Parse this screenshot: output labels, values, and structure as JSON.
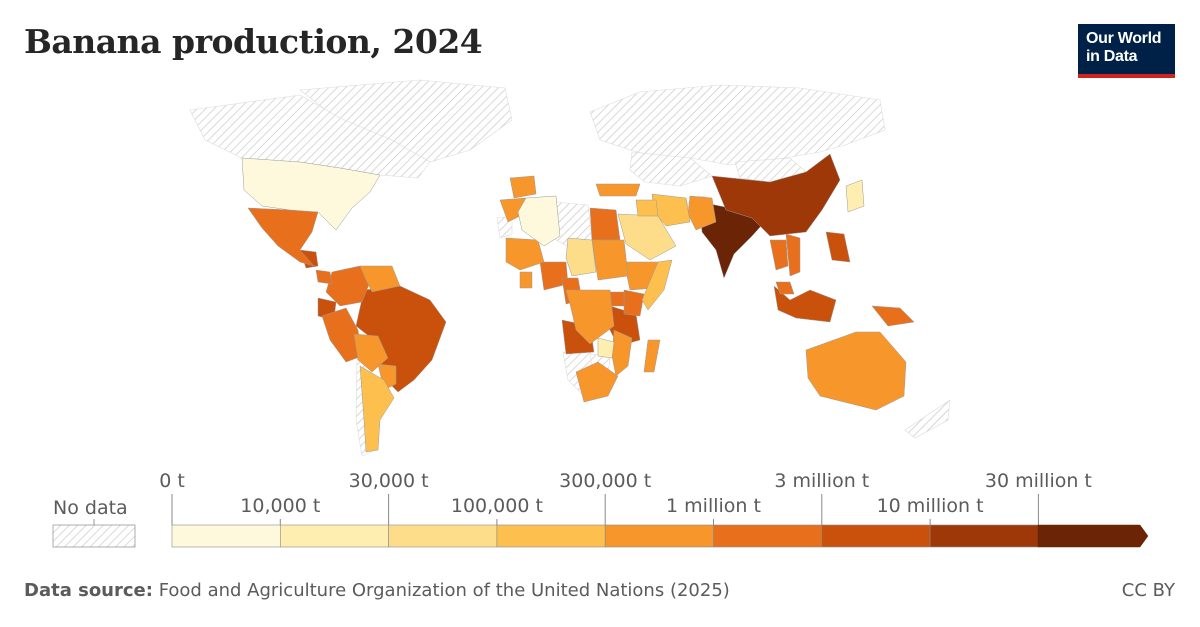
{
  "title": "Banana production, 2024",
  "logo": {
    "line1": "Our World",
    "line2": "in Data",
    "bg": "#002147",
    "accent": "#ce261e"
  },
  "legend": {
    "no_data_label": "No data",
    "upper_ticks": [
      "0 t",
      "30,000 t",
      "300,000 t",
      "3 million t",
      "30 million t"
    ],
    "lower_ticks": [
      "10,000 t",
      "100,000 t",
      "1 million t",
      "10 million t"
    ],
    "bins": [
      {
        "range": "0 t – 10,000 t",
        "color": "#fef9dc"
      },
      {
        "range": "10,000 t – 30,000 t",
        "color": "#feefb1"
      },
      {
        "range": "30,000 t – 100,000 t",
        "color": "#fedd8a"
      },
      {
        "range": "100,000 t – 300,000 t",
        "color": "#fdc04f"
      },
      {
        "range": "300,000 t – 1 million t",
        "color": "#f7962b"
      },
      {
        "range": "1 million t – 3 million t",
        "color": "#e8701d"
      },
      {
        "range": "3 million t – 10 million t",
        "color": "#c9510c"
      },
      {
        "range": "10 million t – 30 million t",
        "color": "#9e3808"
      },
      {
        "range": "30 million t+",
        "color": "#6b2406"
      }
    ]
  },
  "footer": {
    "source_label": "Data source:",
    "source_text": "Food and Agriculture Organization of the United Nations (2025)",
    "license": "CC BY"
  },
  "chart_data": {
    "type": "choropleth",
    "title": "Banana production, 2024",
    "unit": "t",
    "regions": [
      {
        "name": "India",
        "bin": 8
      },
      {
        "name": "China",
        "bin": 7
      },
      {
        "name": "Indonesia",
        "bin": 6
      },
      {
        "name": "Brazil",
        "bin": 6
      },
      {
        "name": "Ecuador",
        "bin": 6
      },
      {
        "name": "Philippines",
        "bin": 6
      },
      {
        "name": "Angola",
        "bin": 6
      },
      {
        "name": "Tanzania",
        "bin": 6
      },
      {
        "name": "Guatemala",
        "bin": 6
      },
      {
        "name": "Nigeria",
        "bin": 5
      },
      {
        "name": "Vietnam",
        "bin": 5
      },
      {
        "name": "Mexico",
        "bin": 5
      },
      {
        "name": "Colombia",
        "bin": 5
      },
      {
        "name": "Peru",
        "bin": 5
      },
      {
        "name": "Costa Rica",
        "bin": 5
      },
      {
        "name": "Egypt",
        "bin": 5
      },
      {
        "name": "Kenya",
        "bin": 5
      },
      {
        "name": "Cameroon",
        "bin": 5
      },
      {
        "name": "Uganda",
        "bin": 5
      },
      {
        "name": "Thailand",
        "bin": 5
      },
      {
        "name": "Papua New Guinea",
        "bin": 5
      },
      {
        "name": "Malaysia",
        "bin": 5
      },
      {
        "name": "Turkey",
        "bin": 4
      },
      {
        "name": "Australia",
        "bin": 4
      },
      {
        "name": "Venezuela",
        "bin": 4
      },
      {
        "name": "DR Congo",
        "bin": 4
      },
      {
        "name": "Mozambique",
        "bin": 4
      },
      {
        "name": "Bolivia",
        "bin": 4
      },
      {
        "name": "Ethiopia",
        "bin": 4
      },
      {
        "name": "Madagascar",
        "bin": 4
      },
      {
        "name": "Sudan",
        "bin": 4
      },
      {
        "name": "South Africa",
        "bin": 4
      },
      {
        "name": "Paraguay",
        "bin": 4
      },
      {
        "name": "Morocco",
        "bin": 4
      },
      {
        "name": "Spain",
        "bin": 4
      },
      {
        "name": "Pakistan",
        "bin": 4
      },
      {
        "name": "Mali",
        "bin": 4
      },
      {
        "name": "Ghana",
        "bin": 4
      },
      {
        "name": "Iran",
        "bin": 3
      },
      {
        "name": "Argentina",
        "bin": 3
      },
      {
        "name": "Saudi Arabia",
        "bin": 2
      },
      {
        "name": "Chad",
        "bin": 2
      },
      {
        "name": "Somalia",
        "bin": 3
      },
      {
        "name": "Iraq",
        "bin": 3
      },
      {
        "name": "Zimbabwe",
        "bin": 1
      },
      {
        "name": "Algeria",
        "bin": 0
      },
      {
        "name": "United States",
        "bin": 0
      },
      {
        "name": "Japan",
        "bin": 1
      }
    ],
    "no_data_regions": [
      "Canada",
      "Greenland",
      "Russia",
      "Kazakhstan",
      "Mongolia",
      "Libya",
      "Western Sahara",
      "Namibia",
      "Botswana",
      "Afghanistan",
      "Chile",
      "Antarctica"
    ]
  }
}
